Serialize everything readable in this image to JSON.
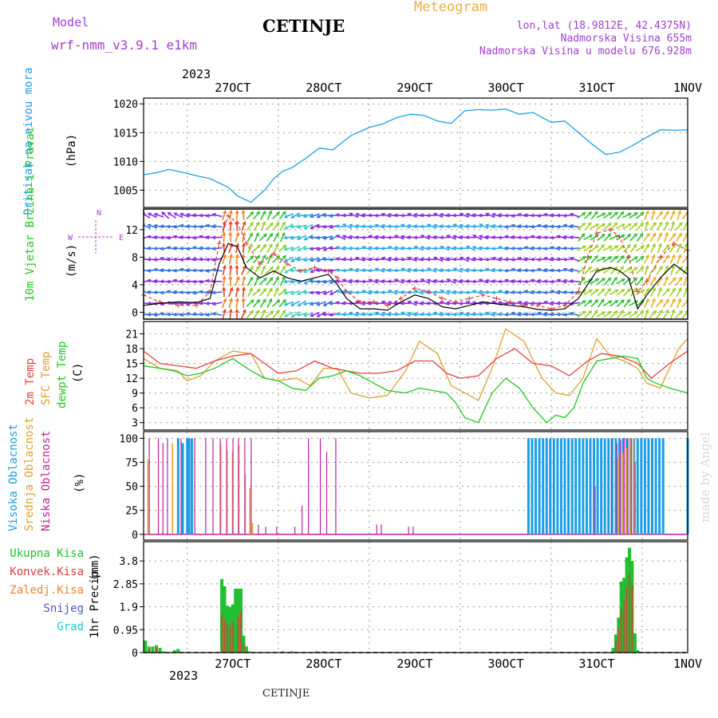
{
  "header": {
    "model_label": "Model",
    "model_name": "wrf-nmm_v3.9.1 e1km",
    "station": "CETINJE",
    "product": "Meteogram",
    "lonlat": "lon,lat (18.9812E, 42.4375N)",
    "altitude": "Nadmorska Visina 655m",
    "model_altitude": "Nadmorska Visina u modelu 676.928m",
    "credit": "made by Angel",
    "footer_station": "CETINJE"
  },
  "time_axis": {
    "top_year": "2023",
    "bottom_year": "2023",
    "days": [
      "27OCT",
      "28OCT",
      "29OCT",
      "30OCT",
      "31OCT",
      "1NOV"
    ],
    "range_days": [
      -0.48,
      5.5
    ]
  },
  "colors": {
    "pressure": "#1ca0e8",
    "temp2m": "#ea4040",
    "sfc_temp": "#e0a030",
    "dewpoint": "#20c820",
    "high_cloud": "#1c9ee6",
    "mid_cloud": "#e0a030",
    "low_cloud": "#c0209a",
    "total_precip": "#22c030",
    "conv_precip": "#e03c3c",
    "frz_precip": "#f08030",
    "snow": "#5050e0",
    "graupel": "#20c8c8",
    "wind_speed": "#000000",
    "wind_gust": "#e03c3c",
    "wind_axis": "#b040e0",
    "header_purple": "#a040d0",
    "header_orange": "#e8b040"
  },
  "chart_data": [
    {
      "type": "line",
      "panel": "pressure",
      "ylabel": "Pritisak na nivou mora",
      "units": "(hPa)",
      "ylim": [
        1002,
        1021
      ],
      "yticks": [
        1005,
        1010,
        1015,
        1020
      ],
      "grid": true,
      "series": [
        {
          "key": "mslp",
          "x": [
            -0.48,
            -0.35,
            -0.2,
            -0.05,
            0.1,
            0.25,
            0.45,
            0.55,
            0.7,
            0.85,
            0.95,
            1.05,
            1.15,
            1.3,
            1.45,
            1.6,
            1.8,
            2.0,
            2.15,
            2.3,
            2.45,
            2.6,
            2.75,
            2.9,
            3.05,
            3.2,
            3.35,
            3.5,
            3.65,
            3.8,
            4.0,
            4.15,
            4.3,
            4.45,
            4.6,
            4.75,
            4.9,
            5.05,
            5.2,
            5.35,
            5.5
          ],
          "y": [
            1007.7,
            1008.0,
            1008.6,
            1008.1,
            1007.5,
            1007.0,
            1005.5,
            1004.0,
            1002.9,
            1005.0,
            1007.0,
            1008.3,
            1008.9,
            1010.5,
            1012.3,
            1012.0,
            1014.5,
            1015.9,
            1016.5,
            1017.6,
            1018.2,
            1018.0,
            1017.0,
            1016.6,
            1018.8,
            1019.0,
            1018.9,
            1019.1,
            1018.2,
            1018.5,
            1016.8,
            1017.0,
            1015.0,
            1013.0,
            1011.2,
            1011.6,
            1012.8,
            1014.2,
            1015.5,
            1015.4,
            1015.5
          ]
        }
      ]
    },
    {
      "type": "line",
      "panel": "wind",
      "ylabel": "10m Vjetar Brzina i Pravac",
      "units": "(m/s)",
      "ylim": [
        -1,
        15
      ],
      "yticks": [
        0,
        4,
        8,
        12
      ],
      "direction_key": [
        "N",
        "W",
        "E"
      ],
      "grid": true,
      "series": [
        {
          "key": "speed",
          "name": "",
          "x": [
            -0.48,
            -0.3,
            -0.1,
            0.1,
            0.25,
            0.35,
            0.45,
            0.55,
            0.65,
            0.8,
            0.95,
            1.1,
            1.25,
            1.4,
            1.55,
            1.65,
            1.75,
            1.9,
            2.05,
            2.2,
            2.35,
            2.5,
            2.65,
            2.8,
            2.95,
            3.1,
            3.25,
            3.4,
            3.55,
            3.7,
            3.85,
            4.0,
            4.15,
            4.3,
            4.4,
            4.5,
            4.65,
            4.75,
            4.85,
            4.95,
            5.05,
            5.2,
            5.35,
            5.5
          ],
          "y": [
            1.0,
            1.3,
            1.5,
            1.4,
            2.0,
            7.0,
            10.0,
            9.5,
            6.5,
            5.0,
            6.0,
            5.0,
            4.5,
            5.0,
            5.5,
            4.0,
            2.0,
            0.5,
            0.5,
            0.3,
            1.5,
            2.5,
            2.0,
            0.8,
            0.5,
            1.0,
            1.5,
            1.2,
            1.0,
            0.8,
            0.4,
            0.3,
            0.5,
            2.0,
            4.0,
            6.0,
            6.5,
            6.0,
            5.0,
            0.5,
            2.5,
            5.0,
            7.0,
            5.5
          ]
        },
        {
          "key": "gust",
          "name": "",
          "x": [
            -0.48,
            -0.3,
            -0.1,
            0.1,
            0.25,
            0.35,
            0.45,
            0.55,
            0.65,
            0.8,
            0.95,
            1.1,
            1.25,
            1.4,
            1.55,
            1.65,
            1.75,
            1.9,
            2.05,
            2.2,
            2.35,
            2.5,
            2.65,
            2.8,
            2.95,
            3.1,
            3.25,
            3.4,
            3.55,
            3.7,
            3.85,
            4.0,
            4.15,
            4.3,
            4.4,
            4.5,
            4.65,
            4.75,
            4.85,
            4.95,
            5.05,
            5.2,
            5.35,
            5.5
          ],
          "y": [
            2.5,
            1.5,
            1.0,
            1.0,
            3.0,
            10.0,
            14.0,
            13.0,
            10.0,
            7.0,
            8.5,
            7.0,
            6.0,
            6.5,
            6.0,
            5.0,
            3.0,
            1.5,
            1.5,
            1.0,
            2.0,
            3.5,
            3.0,
            2.0,
            1.5,
            2.0,
            2.5,
            2.0,
            1.5,
            1.0,
            1.0,
            0.5,
            1.0,
            3.0,
            8.0,
            11.5,
            12.0,
            11.0,
            8.0,
            3.0,
            4.5,
            8.0,
            10.0,
            9.0
          ]
        }
      ]
    },
    {
      "type": "line",
      "panel": "temperature",
      "ylabel": [
        "2m Temp",
        "SFC Temp",
        "dewpt Temp"
      ],
      "units": "(C)",
      "ylim": [
        1.5,
        23.5
      ],
      "yticks": [
        3,
        6,
        9,
        12,
        15,
        18,
        21
      ],
      "grid": true,
      "series": [
        {
          "key": "t2m",
          "name": "2m Temp",
          "x": [
            -0.48,
            -0.3,
            -0.1,
            0.1,
            0.3,
            0.5,
            0.7,
            0.85,
            1.0,
            1.2,
            1.4,
            1.6,
            1.75,
            1.9,
            2.1,
            2.3,
            2.5,
            2.7,
            2.85,
            3.0,
            3.2,
            3.4,
            3.6,
            3.8,
            4.0,
            4.2,
            4.4,
            4.55,
            4.75,
            4.95,
            5.1,
            5.3,
            5.5
          ],
          "y": [
            17.5,
            15.0,
            14.5,
            14.0,
            15.5,
            16.5,
            17.0,
            15.0,
            13.0,
            13.5,
            15.5,
            14.0,
            13.5,
            13.0,
            13.0,
            13.5,
            15.5,
            15.5,
            13.0,
            12.0,
            12.5,
            16.0,
            18.0,
            15.0,
            14.5,
            12.5,
            15.5,
            17.0,
            16.5,
            15.0,
            12.0,
            15.0,
            17.5
          ]
        },
        {
          "key": "sfc",
          "name": "SFC Temp",
          "x": [
            -0.48,
            -0.3,
            -0.1,
            0.0,
            0.15,
            0.3,
            0.5,
            0.7,
            0.85,
            1.0,
            1.2,
            1.35,
            1.5,
            1.65,
            1.8,
            2.0,
            2.2,
            2.4,
            2.55,
            2.75,
            2.9,
            3.05,
            3.2,
            3.35,
            3.5,
            3.7,
            3.9,
            4.05,
            4.2,
            4.35,
            4.5,
            4.65,
            4.8,
            4.95,
            5.05,
            5.2,
            5.4,
            5.5
          ],
          "y": [
            16.0,
            14.0,
            13.5,
            11.5,
            12.5,
            15.5,
            17.5,
            17.0,
            12.0,
            11.5,
            12.0,
            10.5,
            14.0,
            14.0,
            9.0,
            8.0,
            8.5,
            13.5,
            19.5,
            17.0,
            10.5,
            9.0,
            7.5,
            14.0,
            22.0,
            19.5,
            12.0,
            9.0,
            8.5,
            12.0,
            20.0,
            16.5,
            15.5,
            14.0,
            11.0,
            10.0,
            18.0,
            20.0
          ]
        },
        {
          "key": "dew",
          "name": "dewpt Temp",
          "x": [
            -0.48,
            -0.3,
            -0.15,
            0.0,
            0.15,
            0.3,
            0.5,
            0.7,
            0.85,
            1.0,
            1.15,
            1.3,
            1.45,
            1.6,
            1.75,
            1.9,
            2.05,
            2.2,
            2.4,
            2.55,
            2.7,
            2.85,
            2.95,
            3.05,
            3.2,
            3.35,
            3.5,
            3.65,
            3.8,
            3.95,
            4.05,
            4.15,
            4.25,
            4.35,
            4.5,
            4.65,
            4.8,
            4.95,
            5.05,
            5.15,
            5.3,
            5.5
          ],
          "y": [
            14.5,
            14.0,
            13.5,
            12.5,
            13.0,
            14.0,
            16.0,
            13.5,
            12.0,
            11.5,
            10.0,
            9.5,
            12.0,
            12.5,
            13.5,
            12.5,
            11.0,
            9.5,
            9.0,
            10.0,
            9.5,
            9.0,
            7.0,
            4.0,
            3.0,
            9.0,
            12.0,
            10.0,
            6.0,
            3.0,
            4.5,
            4.0,
            6.0,
            11.0,
            15.5,
            16.0,
            16.5,
            16.0,
            12.0,
            11.0,
            10.0,
            9.0
          ]
        }
      ]
    },
    {
      "type": "bar",
      "panel": "cloud",
      "ylabel": [
        "Visoka Oblacnost",
        "Srednja Oblacnost",
        "Niska Oblacnost"
      ],
      "units": "(%)",
      "ylim": [
        -6,
        107
      ],
      "yticks": [
        0,
        25,
        50,
        75,
        100
      ],
      "grid": true,
      "series": [
        {
          "key": "high",
          "name": "Visoka Oblacnost",
          "x": [
            -0.1,
            -0.05,
            0.0,
            0.02,
            0.05,
            3.75,
            3.79,
            3.83,
            3.87,
            3.91,
            3.95,
            3.99,
            4.03,
            4.07,
            4.11,
            4.15,
            4.19,
            4.23,
            4.27,
            4.31,
            4.35,
            4.39,
            4.43,
            4.47,
            4.51,
            4.55,
            4.59,
            4.63,
            4.67,
            4.71,
            4.75,
            4.79,
            4.83,
            4.87,
            4.91,
            4.95,
            4.99,
            5.03,
            5.07,
            5.11,
            5.15,
            5.19,
            5.23,
            5.5
          ],
          "values": [
            100,
            95,
            100,
            100,
            100,
            100,
            100,
            100,
            100,
            100,
            100,
            100,
            100,
            100,
            100,
            100,
            100,
            100,
            100,
            100,
            100,
            100,
            100,
            100,
            100,
            100,
            100,
            100,
            100,
            100,
            100,
            100,
            100,
            100,
            100,
            100,
            100,
            100,
            100,
            100,
            100,
            100,
            100,
            100
          ]
        },
        {
          "key": "mid",
          "name": "Srednja Oblacnost",
          "x": [
            -0.45,
            -0.18,
            0.35,
            0.42,
            0.48,
            0.55,
            0.62,
            0.67,
            0.7,
            4.72,
            4.77,
            4.81,
            4.85,
            4.89
          ],
          "values": [
            78,
            95,
            95,
            88,
            86,
            93,
            62,
            48,
            12,
            80,
            85,
            90,
            100,
            100
          ]
        },
        {
          "key": "low",
          "name": "Niska Oblacnost",
          "x": [
            -0.4,
            -0.3,
            -0.25,
            -0.2,
            -0.05,
            0.1,
            0.22,
            0.3,
            0.38,
            0.45,
            0.52,
            0.58,
            0.65,
            0.72,
            0.8,
            0.88,
            1.0,
            1.2,
            1.28,
            1.35,
            1.48,
            1.55,
            1.65,
            2.1,
            2.15,
            2.45,
            2.5,
            4.5,
            4.68,
            4.74,
            4.78,
            4.82,
            4.86,
            4.9,
            4.94
          ],
          "values": [
            100,
            100,
            95,
            100,
            100,
            100,
            100,
            100,
            100,
            100,
            100,
            100,
            100,
            100,
            10,
            8,
            8,
            8,
            30,
            100,
            100,
            86,
            100,
            10,
            10,
            8,
            8,
            50,
            100,
            95,
            98,
            100,
            100,
            100,
            75
          ]
        }
      ]
    },
    {
      "type": "bar",
      "panel": "precip",
      "ylabel": "1hr Precip",
      "units": "(mm)",
      "ylim": [
        0,
        4.6
      ],
      "yticks": [
        0,
        0.95,
        1.9,
        2.85,
        3.8
      ],
      "legend": [
        "Ukupna Kisa",
        "Konvek.Kisa",
        "Zaledj.Kisa",
        "Snijeg",
        "Grad"
      ],
      "grid": true,
      "series": [
        {
          "key": "total",
          "name": "Ukupna Kisa",
          "x": [
            -0.46,
            -0.42,
            -0.38,
            -0.34,
            -0.3,
            -0.26,
            -0.14,
            -0.1,
            0.38,
            0.41,
            0.44,
            0.47,
            0.5,
            0.53,
            0.56,
            0.59,
            0.62,
            0.65,
            0.68,
            0.72,
            1.05,
            1.15,
            1.42,
            1.5,
            4.68,
            4.71,
            4.74,
            4.77,
            4.8,
            4.83,
            4.86,
            4.89,
            4.92,
            4.95
          ],
          "values": [
            0.5,
            0.25,
            0.25,
            0.3,
            0.2,
            0.05,
            0.1,
            0.15,
            3.05,
            2.75,
            1.95,
            1.9,
            2.0,
            2.65,
            2.65,
            2.65,
            0.7,
            0.25,
            0.05,
            0.02,
            0.05,
            0.05,
            0.05,
            0.05,
            0.2,
            0.75,
            1.45,
            2.95,
            3.1,
            3.95,
            4.35,
            3.8,
            0.8,
            0.1
          ]
        },
        {
          "key": "conv",
          "name": "Konvek.Kisa",
          "x": [
            -0.42,
            -0.34,
            0.38,
            0.41,
            0.44,
            0.47,
            0.5,
            0.56,
            0.59,
            0.62,
            4.71,
            4.74,
            4.77,
            4.8,
            4.83,
            4.86,
            4.89
          ],
          "values": [
            0.15,
            0.2,
            1.6,
            1.4,
            1.2,
            1.1,
            1.3,
            1.5,
            1.7,
            0.4,
            0.5,
            1.0,
            1.8,
            2.2,
            2.7,
            3.3,
            2.8
          ]
        }
      ]
    }
  ]
}
